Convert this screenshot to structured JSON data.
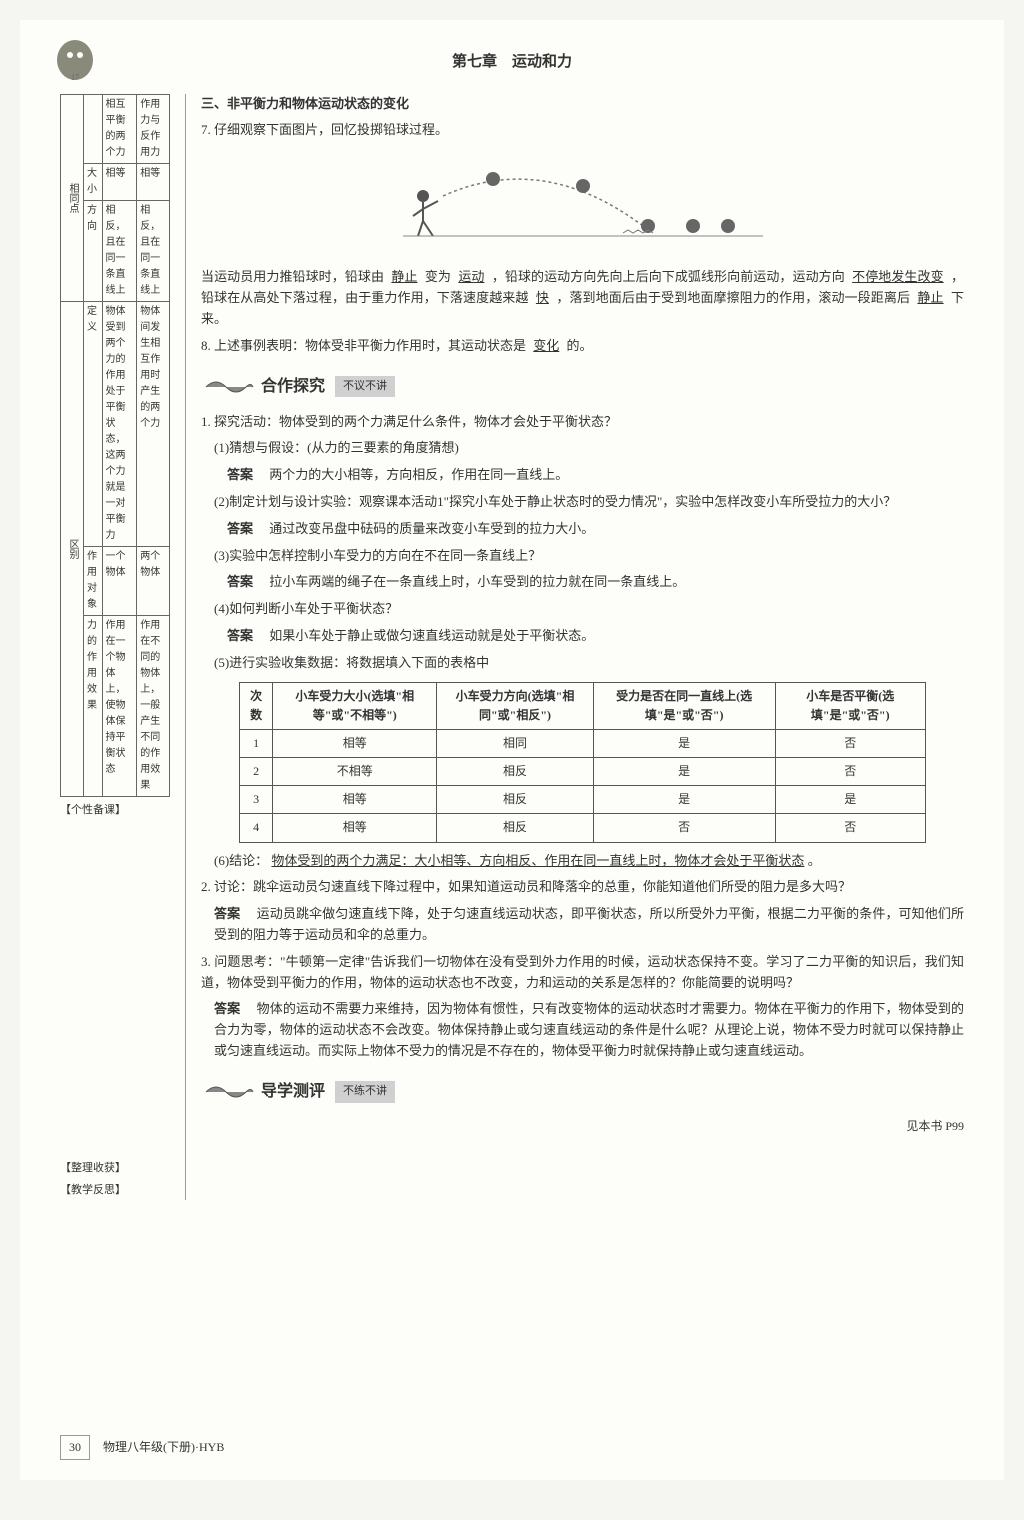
{
  "header": {
    "chapter_title": "第七章　运动和力"
  },
  "sidebar": {
    "table": {
      "group1_label": "相同点",
      "group2_label": "区别",
      "rows": [
        {
          "aspect": "",
          "col1": "相互平衡的两个力",
          "col2": "作用力与反作用力"
        },
        {
          "aspect": "大小",
          "col1": "相等",
          "col2": "相等"
        },
        {
          "aspect": "方向",
          "col1": "相反，且在同一条直线上",
          "col2": "相反，且在同一条直线上"
        },
        {
          "aspect": "定义",
          "col1": "物体受到两个力的作用处于平衡状态，这两个力就是一对平衡力",
          "col2": "物体间发生相互作用时产生的两个力"
        },
        {
          "aspect": "作用对象",
          "col1": "一个物体",
          "col2": "两个物体"
        },
        {
          "aspect": "力的作用效果",
          "col1": "作用在一个物体上，使物体保持平衡状态",
          "col2": "作用在不同的物体上，一般产生不同的作用效果"
        }
      ]
    },
    "note1": "【个性备课】",
    "note2": "【整理收获】",
    "note3": "【教学反思】"
  },
  "content": {
    "section3_title": "三、非平衡力和物体运动状态的变化",
    "q7_intro": "7. 仔细观察下面图片，回忆投掷铅球过程。",
    "q7_text_parts": {
      "p1": "当运动员用力推铅球时，铅球由",
      "b1": "静止",
      "p2": "变为",
      "b2": "运动",
      "p3": "，铅球的运动方向先向上后向下成弧线形向前运动，运动方向",
      "b3": "不停地发生改变",
      "p4": "，铅球在从高处下落过程，由于重力作用，下落速度越来越",
      "b4": "快",
      "p5": "，落到地面后由于受到地面摩擦阻力的作用，滚动一段距离后",
      "b5": "静止",
      "p6": "下来。"
    },
    "q8": {
      "text": "8. 上述事例表明：物体受非平衡力作用时，其运动状态是",
      "blank": "变化",
      "suffix": "的。"
    },
    "banner1": {
      "title": "合作探究",
      "sub": "不议不讲"
    },
    "activity1": {
      "intro": "1. 探究活动：物体受到的两个力满足什么条件，物体才会处于平衡状态？",
      "step1": "(1)猜想与假设：(从力的三要素的角度猜想)",
      "ans1_label": "答案",
      "ans1": "两个力的大小相等，方向相反，作用在同一直线上。",
      "step2": "(2)制定计划与设计实验：观察课本活动1\"探究小车处于静止状态时的受力情况\"，实验中怎样改变小车所受拉力的大小？",
      "ans2_label": "答案",
      "ans2": "通过改变吊盘中砝码的质量来改变小车受到的拉力大小。",
      "step3": "(3)实验中怎样控制小车受力的方向在不在同一条直线上？",
      "ans3_label": "答案",
      "ans3": "拉小车两端的绳子在一条直线上时，小车受到的拉力就在同一条直线上。",
      "step4": "(4)如何判断小车处于平衡状态？",
      "ans4_label": "答案",
      "ans4": "如果小车处于静止或做匀速直线运动就是处于平衡状态。",
      "step5": "(5)进行实验收集数据：将数据填入下面的表格中",
      "table": {
        "headers": [
          "次数",
          "小车受力大小(选填\"相等\"或\"不相等\")",
          "小车受力方向(选填\"相同\"或\"相反\")",
          "受力是否在同一直线上(选填\"是\"或\"否\")",
          "小车是否平衡(选填\"是\"或\"否\")"
        ],
        "rows": [
          [
            "1",
            "相等",
            "相同",
            "是",
            "否"
          ],
          [
            "2",
            "不相等",
            "相反",
            "是",
            "否"
          ],
          [
            "3",
            "相等",
            "相反",
            "是",
            "是"
          ],
          [
            "4",
            "相等",
            "相反",
            "否",
            "否"
          ]
        ]
      },
      "step6_label": "(6)结论：",
      "step6_blank": "物体受到的两个力满足：大小相等、方向相反、作用在同一直线上时，物体才会处于平衡状态",
      "step6_suffix": "。"
    },
    "activity2": {
      "intro": "2. 讨论：跳伞运动员匀速直线下降过程中，如果知道运动员和降落伞的总重，你能知道他们所受的阻力是多大吗？",
      "ans_label": "答案",
      "ans": "运动员跳伞做匀速直线下降，处于匀速直线运动状态，即平衡状态，所以所受外力平衡，根据二力平衡的条件，可知他们所受到的阻力等于运动员和伞的总重力。"
    },
    "activity3": {
      "intro": "3. 问题思考：\"牛顿第一定律\"告诉我们一切物体在没有受到外力作用的时候，运动状态保持不变。学习了二力平衡的知识后，我们知道，物体受到平衡力的作用，物体的运动状态也不改变，力和运动的关系是怎样的？你能简要的说明吗？",
      "ans_label": "答案",
      "ans": "物体的运动不需要力来维持，因为物体有惯性，只有改变物体的运动状态时才需要力。物体在平衡力的作用下，物体受到的合力为零，物体的运动状态不会改变。物体保持静止或匀速直线运动的条件是什么呢？从理论上说，物体不受力时就可以保持静止或匀速直线运动。而实际上物体不受力的情况是不存在的，物体受平衡力时就保持静止或匀速直线运动。"
    },
    "banner2": {
      "title": "导学测评",
      "sub": "不练不讲"
    },
    "ref": "见本书 P99"
  },
  "footer": {
    "page_num": "30",
    "book_info": "物理八年级(下册)·HYB"
  }
}
